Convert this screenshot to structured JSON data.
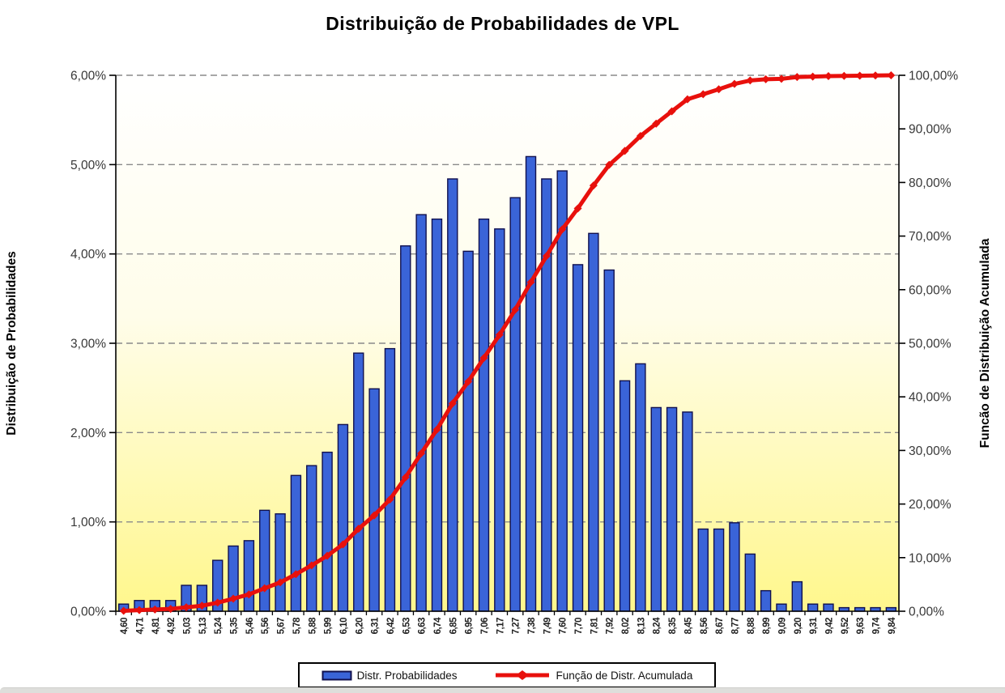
{
  "title": "Distribuição de Probabilidades  de VPL",
  "left_axis": {
    "title": "Distribuição de Probabilidades",
    "min": 0,
    "max": 6,
    "ticks": [
      "0,00%",
      "1,00%",
      "2,00%",
      "3,00%",
      "4,00%",
      "5,00%",
      "6,00%"
    ]
  },
  "right_axis": {
    "title": "Funcão de Distribuição Acumulada",
    "min": 0,
    "max": 100,
    "ticks": [
      "0,00%",
      "10,00%",
      "20,00%",
      "30,00%",
      "40,00%",
      "50,00%",
      "60,00%",
      "70,00%",
      "80,00%",
      "90,00%",
      "100,00%"
    ]
  },
  "legend": {
    "bars_label": "Distr. Probabilidades",
    "line_label": "Função de Distr. Acumulada"
  },
  "chart_data": {
    "type": "combo",
    "subtypes": [
      "bar",
      "line"
    ],
    "title": "Distribuição de Probabilidades  de VPL",
    "xlabel": "",
    "left_ylabel": "Distribuição de Probabilidades",
    "right_ylabel": "Funcão de Distribuição Acumulada",
    "left_ylim": [
      0,
      6
    ],
    "right_ylim": [
      0,
      100
    ],
    "grid": "horizontal-dashed",
    "legend_position": "bottom",
    "bar_color": "#3A64D8",
    "bar_border_color": "#10104E",
    "line_color": "#E8100C",
    "plot_bg_top": "#FFFFFF",
    "plot_bg_bottom": "#FFF78C",
    "categories": [
      "4,60",
      "4,71",
      "4,81",
      "4,92",
      "5,03",
      "5,13",
      "5,24",
      "5,35",
      "5,46",
      "5,56",
      "5,67",
      "5,78",
      "5,88",
      "5,99",
      "6,10",
      "6,20",
      "6,31",
      "6,42",
      "6,53",
      "6,63",
      "6,74",
      "6,85",
      "6,95",
      "7,06",
      "7,17",
      "7,27",
      "7,38",
      "7,49",
      "7,60",
      "7,70",
      "7,81",
      "7,92",
      "8,02",
      "8,13",
      "8,24",
      "8,35",
      "8,45",
      "8,56",
      "8,67",
      "8,77",
      "8,88",
      "8,99",
      "9,09",
      "9,20",
      "9,31",
      "9,42",
      "9,52",
      "9,63",
      "9,74",
      "9,84"
    ],
    "series": [
      {
        "name": "Distr. Probabilidades",
        "type": "bar",
        "axis": "left",
        "unit": "%",
        "values": [
          0.08,
          0.12,
          0.12,
          0.12,
          0.29,
          0.29,
          0.57,
          0.73,
          0.79,
          1.13,
          1.09,
          1.52,
          1.63,
          1.78,
          2.09,
          2.89,
          2.49,
          2.94,
          4.09,
          4.44,
          4.39,
          4.84,
          4.03,
          4.39,
          4.28,
          4.63,
          5.09,
          4.84,
          4.93,
          3.88,
          4.23,
          3.82,
          2.58,
          2.77,
          2.28,
          2.28,
          2.23,
          0.92,
          0.92,
          0.99,
          0.64,
          0.23,
          0.08,
          0.33,
          0.08,
          0.08,
          0.04,
          0.04,
          0.04,
          0.04
        ]
      },
      {
        "name": "Função de Distr. Acumulada",
        "type": "line",
        "axis": "right",
        "unit": "%",
        "values": [
          0.08,
          0.2,
          0.32,
          0.44,
          0.74,
          1.03,
          1.6,
          2.34,
          3.14,
          4.28,
          5.38,
          6.91,
          8.56,
          10.35,
          12.46,
          15.38,
          17.89,
          20.85,
          24.98,
          29.46,
          33.89,
          38.77,
          42.84,
          47.27,
          51.58,
          56.25,
          61.39,
          66.27,
          71.25,
          75.16,
          79.43,
          83.28,
          85.89,
          88.68,
          90.98,
          93.28,
          95.53,
          96.46,
          97.39,
          98.39,
          99.03,
          99.26,
          99.34,
          99.67,
          99.76,
          99.84,
          99.88,
          99.92,
          99.96,
          100.0
        ]
      }
    ]
  }
}
